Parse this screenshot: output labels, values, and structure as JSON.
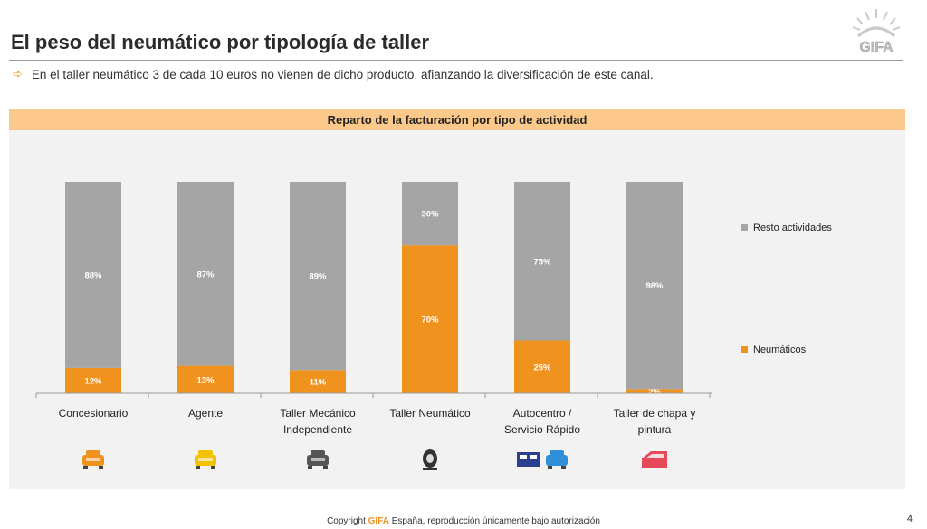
{
  "page": {
    "title": "El peso del neumático por tipología de taller",
    "subtitle": "En el taller neumático 3 de cada 10 euros no vienen de dicho producto, afianzando la diversificación de este canal.",
    "logo_text": "GIFA",
    "footer_prefix": "Copyright ",
    "footer_brand": "GIFA",
    "footer_suffix": " España, reproducción únicamente bajo autorización",
    "page_number": "4"
  },
  "colors": {
    "accent": "#f0921e",
    "grey": "#a5a5a5",
    "header": "#fcc98a",
    "panel": "#f2f2f2"
  },
  "chart_data": {
    "type": "bar",
    "stacked": true,
    "title": "Reparto de la facturación por tipo de actividad",
    "categories": [
      "Concesionario",
      "Agente",
      "Taller Mecánico Independiente",
      "Taller Neumático",
      "Autocentro / Servicio Rápido",
      "Taller de chapa y pintura"
    ],
    "category_lines": [
      [
        "Concesionario"
      ],
      [
        "Agente"
      ],
      [
        "Taller Mecánico",
        "Independiente"
      ],
      [
        "Taller Neumático"
      ],
      [
        "Autocentro /",
        "Servicio Rápido"
      ],
      [
        "Taller de chapa y",
        "pintura"
      ]
    ],
    "series": [
      {
        "name": "Neumáticos",
        "color": "#f0921e",
        "values": [
          12,
          13,
          11,
          70,
          25,
          2
        ],
        "labels": [
          "12%",
          "13%",
          "11%",
          "70%",
          "25%",
          "2%"
        ]
      },
      {
        "name": "Resto actividades",
        "color": "#a5a5a5",
        "values": [
          88,
          87,
          89,
          30,
          75,
          98
        ],
        "labels": [
          "88%",
          "87%",
          "89%",
          "30%",
          "75%",
          "98%"
        ]
      }
    ],
    "ylim": [
      0,
      100
    ],
    "legend_position": "right",
    "icons": [
      "car-orange-icon",
      "car-yellow-icon",
      "car-grey-icon",
      "tire-icon",
      "van-car-icon",
      "car-door-icon"
    ]
  }
}
